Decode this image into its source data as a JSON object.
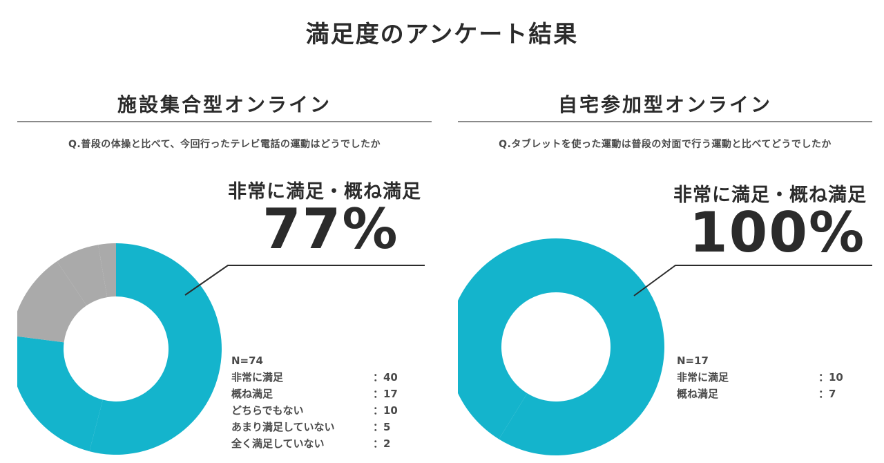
{
  "title": "満足度のアンケート結果",
  "panels": [
    {
      "heading": "施設集合型オンライン",
      "question": "Q.普段の体操と比べて、今回行ったテレビ電話の運動はどうでしたか",
      "callout_label": "非常に満足・概ね満足",
      "callout_value": "77%",
      "legend_n": "N=74",
      "colors": {
        "main": "#14b4cc",
        "other": "#aaaaaa"
      }
    },
    {
      "heading": "自宅参加型オンライン",
      "question": "Q.タブレットを使った運動は普段の対面で行う運動と比べてどうでしたか",
      "callout_label": "非常に満足・概ね満足",
      "callout_value": "100%",
      "legend_n": "N=17",
      "colors": {
        "main": "#14b4cc",
        "other": "#aaaaaa"
      }
    }
  ],
  "chart_data": [
    {
      "type": "pie",
      "title": "施設集合型オンライン",
      "categories": [
        "非常に満足",
        "概ね満足",
        "どちらでもない",
        "あまり満足していない",
        "全く満足していない"
      ],
      "values": [
        40,
        17,
        10,
        5,
        2
      ],
      "value_labels": [
        "：40",
        "：17",
        "：10",
        "：5",
        "：2"
      ],
      "n": 74,
      "colors": [
        "#14b4cc",
        "#14b4cc",
        "#aaaaaa",
        "#aaaaaa",
        "#aaaaaa"
      ]
    },
    {
      "type": "pie",
      "title": "自宅参加型オンライン",
      "categories": [
        "非常に満足",
        "概ね満足"
      ],
      "values": [
        10,
        7
      ],
      "value_labels": [
        "：10",
        "：7"
      ],
      "n": 17,
      "colors": [
        "#14b4cc",
        "#14b4cc"
      ]
    }
  ]
}
